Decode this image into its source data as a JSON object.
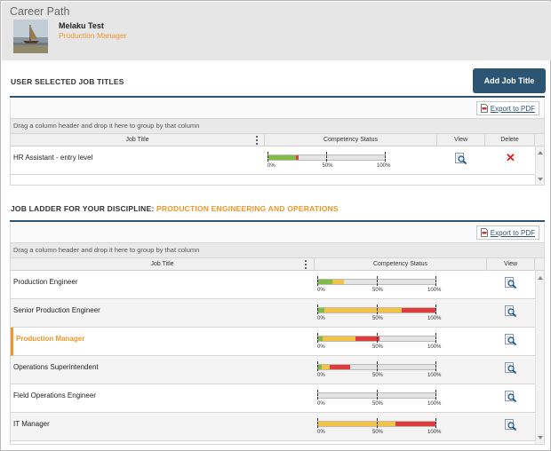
{
  "header": {
    "page_title": "Career Path",
    "user_name": "Melaku Test",
    "user_role": "Production Manager"
  },
  "selected_section": {
    "title": "USER SELECTED JOB TITLES",
    "add_button": "Add Job Title",
    "export_label": "Export to PDF",
    "grouping_hint": "Drag a column header and drop it here to group by that column",
    "columns": [
      "Job Title",
      "Competency Status",
      "View",
      "Delete"
    ],
    "rows": [
      {
        "title": "HR Assistant - entry level",
        "green": 0.24,
        "yellow": 0.0,
        "red": 0.02
      }
    ],
    "axis_labels": [
      "0%",
      "50%",
      "100%"
    ]
  },
  "ladder_section": {
    "title_prefix": "JOB LADDER FOR YOUR DISCIPLINE:",
    "title_discipline": "PRODUCTION ENGINEERING AND OPERATIONS",
    "export_label": "Export to PDF",
    "grouping_hint": "Drag a column header and drop it here to group by that column",
    "columns": [
      "Job Title",
      "Competency Status",
      "View"
    ],
    "rows": [
      {
        "title": "Production Engineer",
        "green": 0.12,
        "yellow": 0.1,
        "red": 0.0,
        "highlight": false
      },
      {
        "title": "Senior Production Engineer",
        "green": 0.05,
        "yellow": 0.66,
        "red": 0.29,
        "highlight": false
      },
      {
        "title": "Production Manager",
        "green": 0.04,
        "yellow": 0.28,
        "red": 0.2,
        "highlight": true
      },
      {
        "title": "Operations Superintendent",
        "green": 0.03,
        "yellow": 0.07,
        "red": 0.17,
        "highlight": false
      },
      {
        "title": "Field Operations Engineer",
        "green": 0.0,
        "yellow": 0.0,
        "red": 0.0,
        "highlight": false
      },
      {
        "title": "IT Manager",
        "green": 0.0,
        "yellow": 0.66,
        "red": 0.34,
        "highlight": false
      }
    ],
    "axis_labels": [
      "0%",
      "50%",
      "100%"
    ]
  },
  "colors": {
    "accent_orange": "#f0962a",
    "navy": "#2b5573",
    "green": "#82bd43",
    "yellow": "#f5c342",
    "red": "#e23b3b"
  },
  "icons": {
    "view": "magnifier-document-icon",
    "delete": "red-x-icon",
    "export": "pdf-document-icon",
    "column_menu": "kebab-menu-icon"
  }
}
